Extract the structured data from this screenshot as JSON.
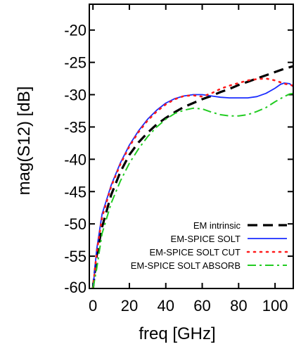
{
  "chart_data": {
    "type": "line",
    "title": "",
    "xlabel": "freq [GHz]",
    "ylabel": "mag(S12) [dB]",
    "xlim": [
      -2,
      110
    ],
    "ylim": [
      -60,
      -16
    ],
    "x_ticks": [
      0,
      20,
      40,
      60,
      80,
      100
    ],
    "y_ticks": [
      -20,
      -25,
      -30,
      -35,
      -40,
      -45,
      -50,
      -55,
      -60
    ],
    "grid": false,
    "legend_position": "bottom-right",
    "series": [
      {
        "name": "EM intrinsic",
        "color": "#000000",
        "style": "dashed",
        "x": [
          0,
          2,
          5,
          10,
          15,
          20,
          25,
          30,
          35,
          40,
          45,
          50,
          55,
          60,
          65,
          70,
          75,
          80,
          85,
          90,
          95,
          100,
          105,
          110
        ],
        "y": [
          -60,
          -55,
          -50.5,
          -45.5,
          -42,
          -39.3,
          -37.4,
          -35.9,
          -34.6,
          -33.6,
          -32.7,
          -31.9,
          -31.3,
          -30.7,
          -30.2,
          -29.6,
          -29.1,
          -28.5,
          -28,
          -27.5,
          -27,
          -26.5,
          -26,
          -25.6
        ]
      },
      {
        "name": "EM-SPICE SOLT",
        "color": "#1a2cff",
        "style": "solid",
        "x": [
          0,
          2,
          5,
          10,
          15,
          20,
          25,
          30,
          35,
          40,
          45,
          50,
          55,
          60,
          65,
          70,
          75,
          80,
          85,
          90,
          95,
          100,
          103,
          105,
          108,
          110
        ],
        "y": [
          -60,
          -54,
          -48.5,
          -44,
          -40.6,
          -37.8,
          -35.6,
          -33.8,
          -32.4,
          -31.3,
          -30.6,
          -30.2,
          -30,
          -30,
          -30.2,
          -30.4,
          -30.5,
          -30.5,
          -30.5,
          -30.3,
          -29.8,
          -29,
          -28.4,
          -28.2,
          -28.3,
          -28.8
        ]
      },
      {
        "name": "EM-SPICE SOLT CUT",
        "color": "#ff1a1a",
        "style": "dotted",
        "x": [
          0,
          2,
          5,
          10,
          15,
          20,
          25,
          30,
          35,
          40,
          45,
          50,
          55,
          60,
          65,
          70,
          75,
          80,
          85,
          90,
          95,
          100,
          105,
          110
        ],
        "y": [
          -60,
          -54.5,
          -49,
          -44.2,
          -40.8,
          -38,
          -35.8,
          -34,
          -32.6,
          -31.5,
          -30.7,
          -30.2,
          -30.1,
          -30.3,
          -29.8,
          -29.1,
          -28.6,
          -28.2,
          -27.8,
          -27.6,
          -27.5,
          -27.8,
          -28.3,
          -28.6
        ]
      },
      {
        "name": "EM-SPICE SOLT ABSORB",
        "color": "#22cc22",
        "style": "dashdot",
        "x": [
          0,
          2,
          5,
          10,
          15,
          20,
          25,
          30,
          35,
          40,
          45,
          50,
          55,
          60,
          65,
          70,
          75,
          80,
          85,
          90,
          95,
          100,
          105,
          108,
          110
        ],
        "y": [
          -60,
          -57,
          -51.5,
          -46.8,
          -43.4,
          -40.6,
          -38.4,
          -36.5,
          -35,
          -33.8,
          -32.9,
          -32.4,
          -32.1,
          -32.2,
          -32.7,
          -33.1,
          -33.3,
          -33.3,
          -33.1,
          -32.6,
          -32,
          -31.1,
          -30.3,
          -29.9,
          -29.8
        ]
      }
    ]
  }
}
